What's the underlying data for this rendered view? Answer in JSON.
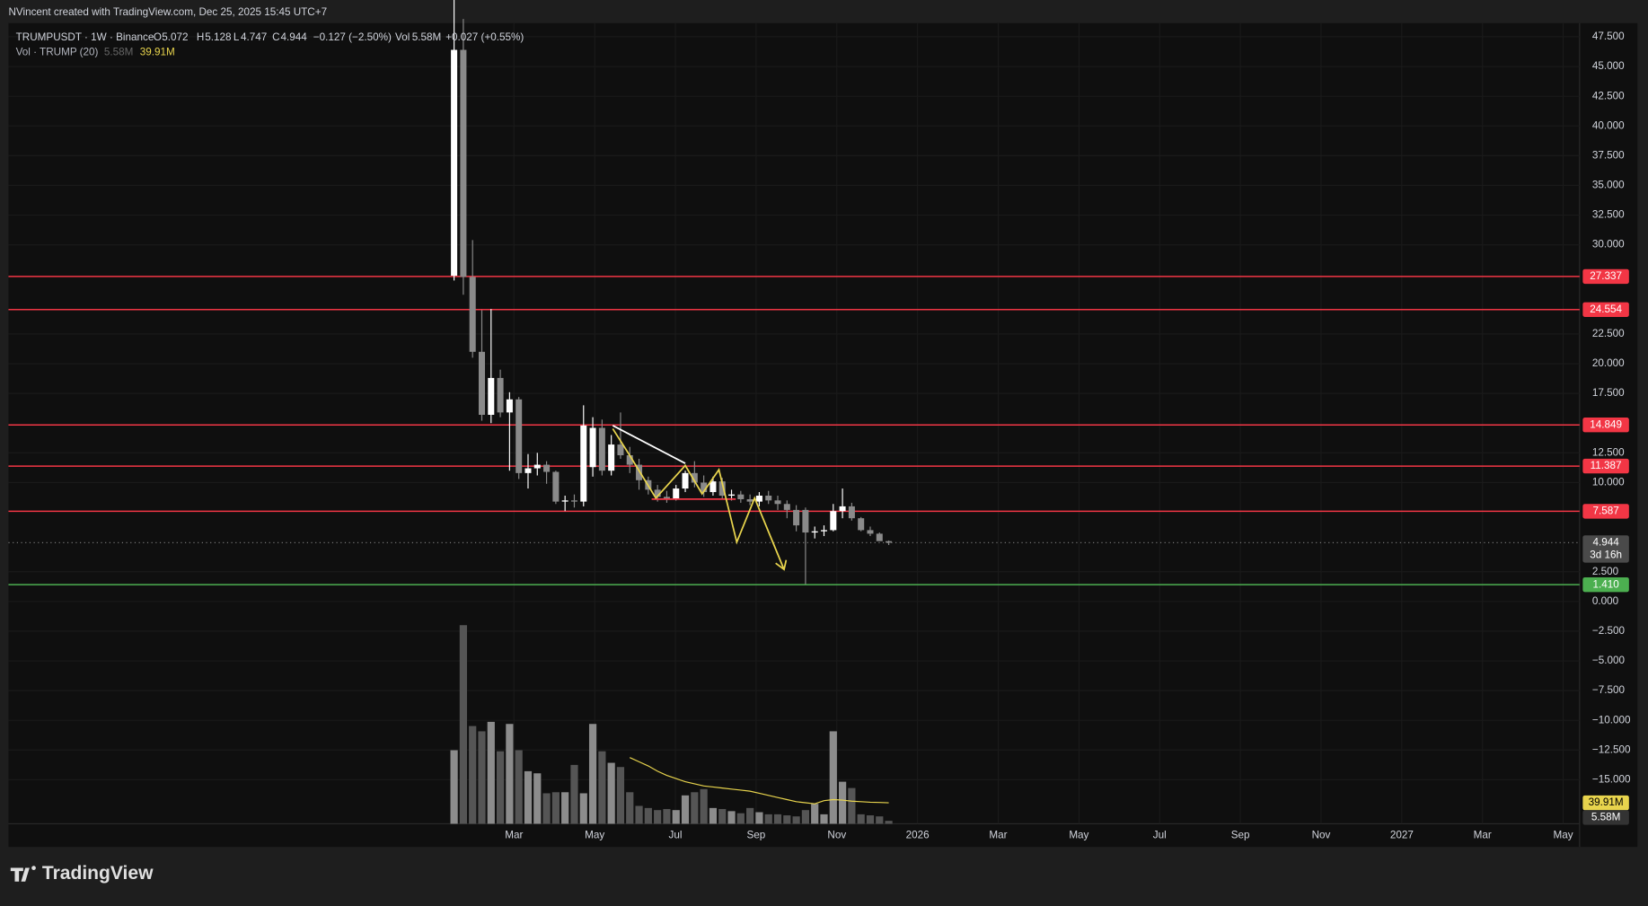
{
  "header": "NVincent created with TradingView.com, Dec 25, 2025 15:45 UTC+7",
  "footer_brand": "TradingView",
  "chart_data": {
    "type": "candlestick",
    "symbol_label": "TRUMPUSDT · 1W · Binance",
    "legend_keys": {
      "open": "O",
      "high": "H",
      "low": "L",
      "close": "C",
      "volume": "Vol"
    },
    "change_label": "−0.127 (−2.50%)",
    "overlap_label": "+0.027 (+0.55%)",
    "volume_value_label": "5.58M",
    "volume_indicator_label": "Vol · TRUMP (20)",
    "volume_ma_label": "39.91M",
    "countdown": "3d 16h",
    "open": [
      27.4,
      46.4,
      27.3,
      21.0,
      15.7,
      18.8,
      15.9,
      17.0,
      10.8,
      11.2,
      11.5,
      10.9,
      8.4,
      8.5,
      8.4,
      11.3,
      14.6,
      11.0,
      13.2,
      12.3,
      11.5,
      10.2,
      9.4,
      8.8,
      8.6,
      9.5,
      10.8,
      10.0,
      9.2,
      10.1,
      8.9,
      9.0,
      8.6,
      8.4,
      8.9,
      8.5,
      8.2,
      7.7,
      7.7,
      5.8,
      5.9,
      6.0,
      7.6,
      8.0,
      7.0,
      6.0,
      5.7,
      5.072
    ],
    "high": [
      60.0,
      49.0,
      30.4,
      24.5,
      24.6,
      19.5,
      17.6,
      17.2,
      12.4,
      12.5,
      11.8,
      11.0,
      8.9,
      9.0,
      16.5,
      15.5,
      15.3,
      14.0,
      15.9,
      13.0,
      12.0,
      10.5,
      9.8,
      9.3,
      9.8,
      11.0,
      11.8,
      10.6,
      10.5,
      10.4,
      9.4,
      9.3,
      9.0,
      9.2,
      9.3,
      8.9,
      8.5,
      8.1,
      7.9,
      6.3,
      6.4,
      8.2,
      9.5,
      8.3,
      7.1,
      6.3,
      5.8,
      5.128
    ],
    "low": [
      27.0,
      25.8,
      20.5,
      15.2,
      15.0,
      15.5,
      11.0,
      10.3,
      9.5,
      10.6,
      9.9,
      8.2,
      7.6,
      7.9,
      8.0,
      10.5,
      10.6,
      10.6,
      12.0,
      10.8,
      9.4,
      9.0,
      8.4,
      8.3,
      8.5,
      9.2,
      9.6,
      8.8,
      8.9,
      8.6,
      8.5,
      8.3,
      8.1,
      8.0,
      8.2,
      7.7,
      7.0,
      5.9,
      1.45,
      5.3,
      5.5,
      5.9,
      7.0,
      6.8,
      5.9,
      5.5,
      5.1,
      4.747
    ],
    "close": [
      46.4,
      27.3,
      21.0,
      15.7,
      18.8,
      15.9,
      17.0,
      10.8,
      11.2,
      11.5,
      10.9,
      8.4,
      8.5,
      8.4,
      14.8,
      14.6,
      11.0,
      13.2,
      12.3,
      11.5,
      10.2,
      9.4,
      8.8,
      8.6,
      9.5,
      10.8,
      10.0,
      9.2,
      10.1,
      8.9,
      9.0,
      8.6,
      8.4,
      8.9,
      8.5,
      8.2,
      7.7,
      6.4,
      5.8,
      5.9,
      6.0,
      7.6,
      8.0,
      7.0,
      6.0,
      5.7,
      5.071,
      4.944
    ],
    "volume": [
      140,
      378,
      186,
      176,
      194,
      138,
      190,
      140,
      100,
      96,
      58,
      60,
      60,
      112,
      58,
      190,
      138,
      116,
      108,
      60,
      34,
      30,
      26,
      28,
      26,
      54,
      60,
      66,
      30,
      28,
      24,
      20,
      30,
      22,
      18,
      18,
      16,
      14,
      26,
      38,
      18,
      176,
      80,
      68,
      18,
      16,
      14,
      5.58
    ],
    "volume_ma": [
      null,
      null,
      null,
      null,
      null,
      null,
      null,
      null,
      null,
      null,
      null,
      null,
      null,
      null,
      null,
      null,
      null,
      null,
      null,
      126,
      118,
      110,
      100,
      92,
      86,
      80,
      76,
      72,
      70,
      68,
      66,
      64,
      62,
      58,
      54,
      50,
      46,
      42,
      40,
      38,
      44,
      46,
      45,
      43,
      42,
      41,
      40.5,
      39.91
    ],
    "up_color": "#ffffff",
    "down_color": "#8a8a8a",
    "volume_up_color": "#8c8c8c",
    "volume_down_color": "#555555",
    "volume_ma_color": "#e8d44d",
    "ylim": [
      -18.7,
      48.65
    ],
    "yticks": [
      {
        "value": 47.5,
        "label": "47.500"
      },
      {
        "value": 45,
        "label": "45.000"
      },
      {
        "value": 42.5,
        "label": "42.500"
      },
      {
        "value": 40,
        "label": "40.000"
      },
      {
        "value": 37.5,
        "label": "37.500"
      },
      {
        "value": 35,
        "label": "35.000"
      },
      {
        "value": 32.5,
        "label": "32.500"
      },
      {
        "value": 30,
        "label": "30.000"
      },
      {
        "value": 22.5,
        "label": "22.500"
      },
      {
        "value": 20,
        "label": "20.000"
      },
      {
        "value": 17.5,
        "label": "17.500"
      },
      {
        "value": 12.5,
        "label": "12.500"
      },
      {
        "value": 10,
        "label": "10.000"
      },
      {
        "value": 2.5,
        "label": "2.500"
      },
      {
        "value": 0,
        "label": "0.000"
      },
      {
        "value": -2.5,
        "label": "−2.500"
      },
      {
        "value": -5,
        "label": "−5.000"
      },
      {
        "value": -7.5,
        "label": "−7.500"
      },
      {
        "value": -10,
        "label": "−10.000"
      },
      {
        "value": -12.5,
        "label": "−12.500"
      },
      {
        "value": -15,
        "label": "−15.000"
      }
    ],
    "xtick_labels": [
      "Mar",
      "May",
      "Jul",
      "Sep",
      "Nov",
      "2026",
      "Mar",
      "May",
      "Jul",
      "Sep",
      "Nov",
      "2027",
      "Mar",
      "May"
    ],
    "price_lines": [
      {
        "value": 27.337,
        "color": "#f23645"
      },
      {
        "value": 24.554,
        "color": "#f23645"
      },
      {
        "value": 14.849,
        "color": "#f23645"
      },
      {
        "value": 11.387,
        "color": "#f23645"
      },
      {
        "value": 7.587,
        "color": "#f23645"
      },
      {
        "value": 1.41,
        "label": "1.410",
        "color": "#4caf50"
      }
    ],
    "grid": true
  }
}
